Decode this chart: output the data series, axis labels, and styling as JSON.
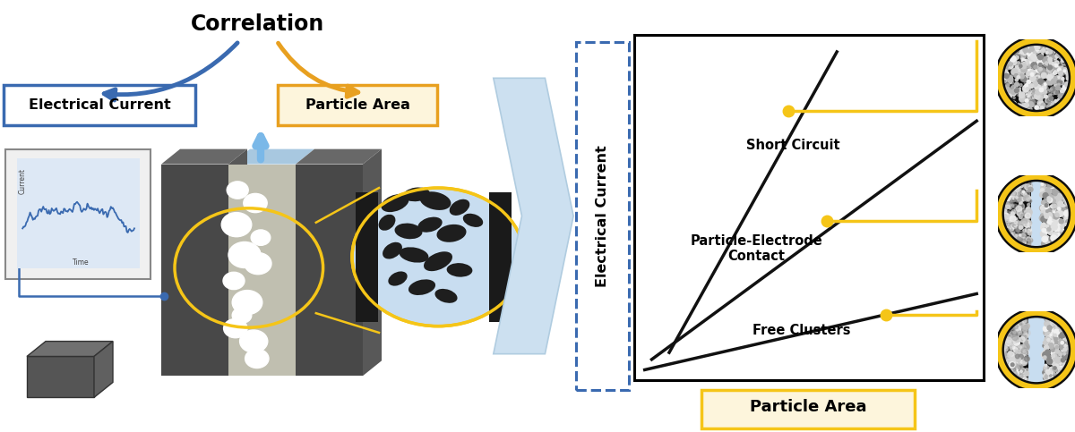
{
  "bg_color": "#ffffff",
  "title_text": "Correlation",
  "left_label": "Electrical Current",
  "right_label": "Particle Area",
  "ylabel": "Electrical Current",
  "xlabel": "Particle Area",
  "line1_label": "Short Circuit",
  "line2_label": "Particle-Electrode\nContact",
  "line3_label": "Free Clusters",
  "blue_arrow_color": "#3a6ab0",
  "orange_arrow_color": "#e8a020",
  "yellow_color": "#f5c518",
  "line_color": "#111111",
  "box_blue_stroke": "#3a6ab0",
  "box_orange_stroke": "#e8a020",
  "box_yellow_stroke": "#f5c518",
  "left_box_bg": "#ffffff",
  "right_box_bg": "#fdf5dc",
  "xlabel_box_bg": "#fdf5dc",
  "xlabel_box_stroke": "#f5c518",
  "ylabel_box_bg": "#ffffff",
  "ylabel_box_stroke": "#3a6ab0",
  "chevron_color": "#cce0f0",
  "chevron_edge": "#b0cce0"
}
